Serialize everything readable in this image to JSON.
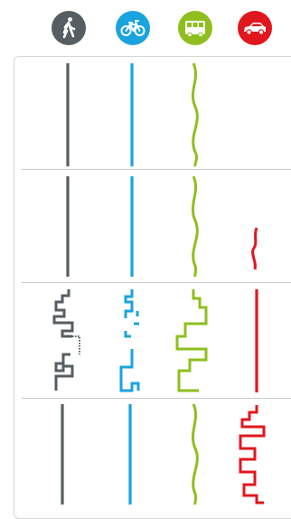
{
  "modes": [
    {
      "id": "walk",
      "icon": "walking-person-icon",
      "color": "#565e62"
    },
    {
      "id": "bike",
      "icon": "bicycle-icon",
      "color": "#1aa3df"
    },
    {
      "id": "bus",
      "icon": "bus-icon",
      "color": "#8ebf1e"
    },
    {
      "id": "car",
      "icon": "car-icon",
      "color": "#e0171f"
    }
  ],
  "colors": {
    "walk": "#565e62",
    "bike": "#1aa3df",
    "bus": "#8ebf1e",
    "car": "#e0171f",
    "separator": "#c9c9c9"
  }
}
